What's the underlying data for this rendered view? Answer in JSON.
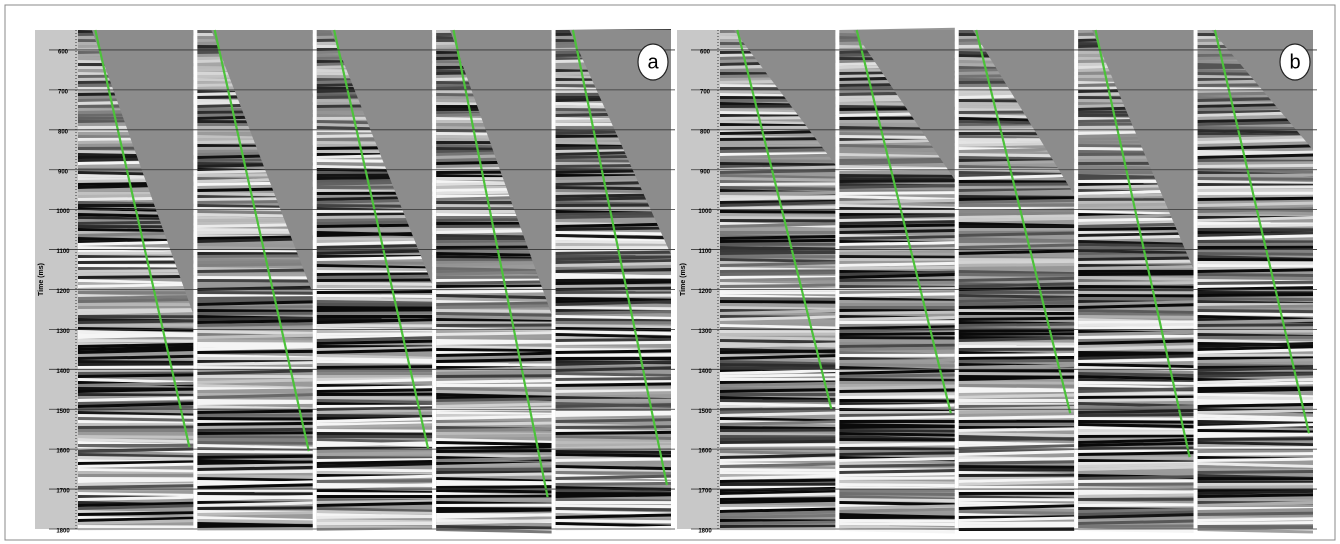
{
  "chart_data": [
    {
      "type": "seismic",
      "label": "a",
      "y_label": "Time (ms)",
      "ylim": [
        550,
        1800
      ],
      "yticks": [
        600,
        700,
        800,
        900,
        1000,
        1100,
        1200,
        1300,
        1400,
        1500,
        1600,
        1700,
        1800
      ]
    },
    {
      "type": "seismic",
      "label": "b",
      "y_label": "Time (ms)",
      "ylim": [
        550,
        1800
      ],
      "yticks": [
        600,
        700,
        800,
        900,
        1000,
        1100,
        1200,
        1300,
        1400,
        1500,
        1600,
        1700,
        1800
      ]
    }
  ]
}
